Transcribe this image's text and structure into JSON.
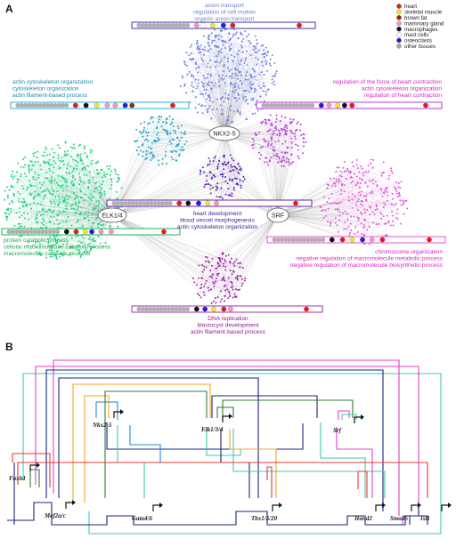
{
  "panel_a": {
    "label": "A",
    "hubs": [
      "NKX2-5",
      "ELK1/4",
      "SRF"
    ],
    "legend": [
      {
        "label": "heart",
        "color": "#e41a1c"
      },
      {
        "label": "skeletal muscle",
        "color": "#f2e622"
      },
      {
        "label": "brown fat",
        "color": "#8c2d04"
      },
      {
        "label": "mammary gland",
        "color": "#ff8fc8"
      },
      {
        "label": "macrophages",
        "color": "#111111"
      },
      {
        "label": "mast cells",
        "color": "#ffffff"
      },
      {
        "label": "osteoclasts",
        "color": "#1f1fd0"
      },
      {
        "label": "other tissues",
        "color": "#a8a8a8"
      }
    ],
    "term_groups": [
      {
        "color": "#6d7fd6",
        "lines": [
          "anion transport",
          "regulation of cell motion",
          "organic anion transport"
        ]
      },
      {
        "color": "#1d8aa8",
        "lines": [
          "actin cytoskeleton organization",
          "cytoskeleton organization",
          "actin filament-based process"
        ]
      },
      {
        "color": "#d726c4",
        "lines": [
          "regulation of the force of heart contraction",
          "actin cytoskeleton organization",
          "regulation of heart contraction"
        ]
      },
      {
        "color": "#3d1a9e",
        "lines": [
          "heart development",
          "blood vessel morphogenesis",
          "actin cytoskeleton organization"
        ]
      },
      {
        "color": "#1aa84a",
        "lines": [
          "protein catabolic process",
          "cellular macromolecule catabolic process",
          "macromolecule catabolic process"
        ]
      },
      {
        "color": "#d726c4",
        "lines": [
          "chromosome organization",
          "negative regulation of macromolecule metabolic process",
          "negative regulation of macromolecule biosynthetic process"
        ]
      },
      {
        "color": "#8a1a8e",
        "lines": [
          "DNA replication",
          "blastocyst development",
          "actin filament-based process"
        ]
      }
    ]
  },
  "panel_b": {
    "label": "B",
    "genes": [
      "Nkx2-5",
      "Elk1/3/4",
      "Srf",
      "Foxh1",
      "Mef2a/c",
      "Gata4/6",
      "Tbx1/5/20",
      "Hand2",
      "Smad6",
      "Isl1"
    ]
  },
  "colors": {
    "blue_cluster": "#6b7fe0",
    "cyan_cluster": "#1e9bc0",
    "magenta_cluster": "#b43cd6",
    "violet_cluster": "#5b1fb0",
    "green_cluster": "#17d27a",
    "pink_cluster": "#e04fd8",
    "purple_cluster": "#9a1ea8",
    "wire_navy": "#1a237e",
    "wire_magenta": "#e040c8",
    "wire_teal": "#40c8b0",
    "wire_red": "#e53935",
    "wire_orange": "#f5a623",
    "wire_green": "#2e7d32",
    "wire_blue": "#1e88e5"
  }
}
